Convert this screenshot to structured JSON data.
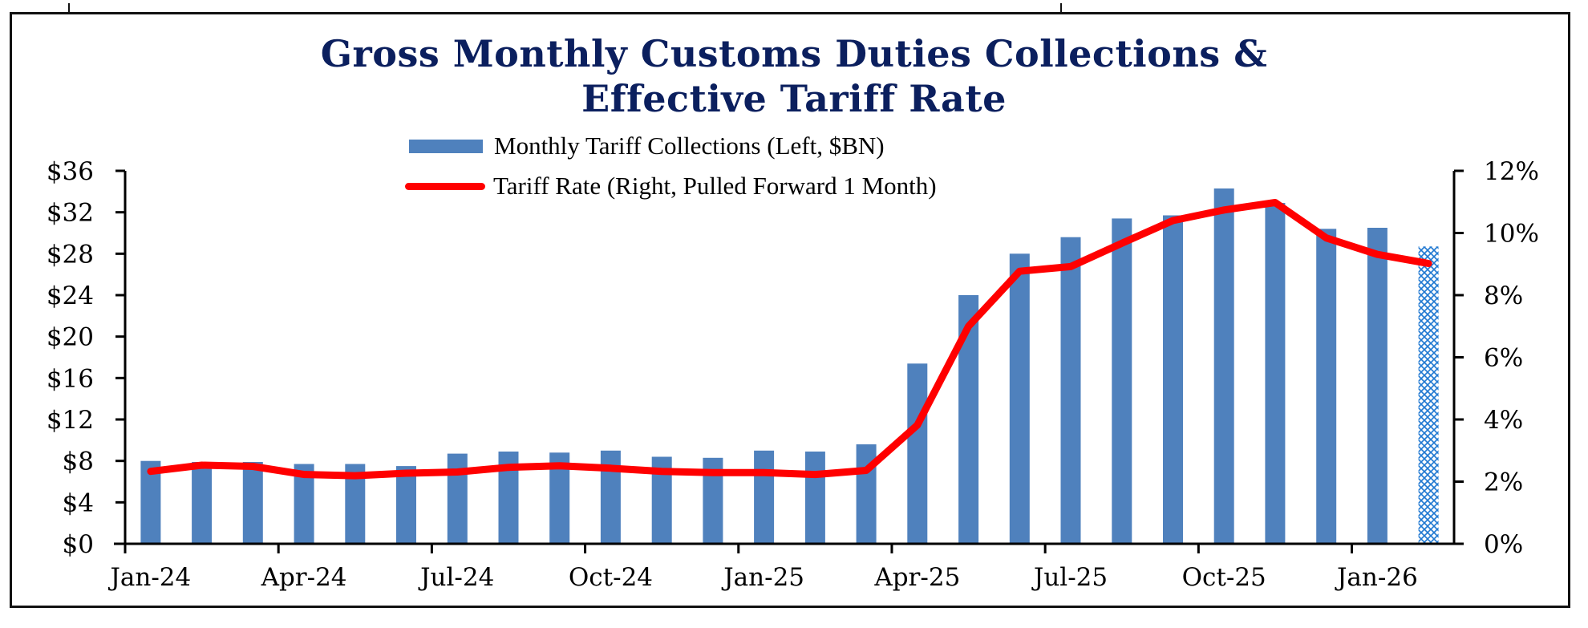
{
  "chart_data": {
    "type": "bar",
    "title_line1": "Gross Monthly Customs Duties Collections &",
    "title_line2": "Effective Tariff Rate",
    "xlabel": "",
    "ylabel": "",
    "categories": [
      "Jan-24",
      "Feb-24",
      "Mar-24",
      "Apr-24",
      "May-24",
      "Jun-24",
      "Jul-24",
      "Aug-24",
      "Sep-24",
      "Oct-24",
      "Nov-24",
      "Dec-24",
      "Jan-25",
      "Feb-25",
      "Mar-25",
      "Apr-25",
      "May-25",
      "Jun-25",
      "Jul-25",
      "Aug-25",
      "Sep-25",
      "Oct-25",
      "Nov-25",
      "Dec-25",
      "Jan-26",
      "Feb-26"
    ],
    "x_tick_labels": [
      "Jan-24",
      "Apr-24",
      "Jul-24",
      "Oct-24",
      "Jan-25",
      "Apr-25",
      "Jul-25",
      "Oct-25",
      "Jan-26"
    ],
    "series": [
      {
        "name": "Monthly Tariff Collections (Left, $BN)",
        "type": "bar",
        "axis": "left",
        "color": "#4f81bd",
        "values": [
          8.0,
          7.9,
          7.9,
          7.7,
          7.7,
          7.5,
          8.7,
          8.9,
          8.8,
          9.0,
          8.4,
          8.3,
          9.0,
          8.9,
          9.6,
          17.4,
          24.0,
          28.0,
          29.6,
          31.4,
          31.7,
          34.3,
          32.9,
          30.4,
          30.5,
          28.7
        ],
        "estimated_last_point": true,
        "estimated_pattern": "hatched"
      },
      {
        "name": "Tariff Rate (Right, Pulled Forward 1 Month)",
        "type": "line",
        "axis": "right",
        "color": "#ff0000",
        "values": [
          2.33,
          2.53,
          2.49,
          2.23,
          2.19,
          2.27,
          2.31,
          2.46,
          2.51,
          2.43,
          2.33,
          2.29,
          2.29,
          2.23,
          2.36,
          3.82,
          7.0,
          8.77,
          8.92,
          9.67,
          10.4,
          10.74,
          10.98,
          9.84,
          9.31,
          9.02
        ]
      }
    ],
    "y_left": {
      "ylim": [
        0,
        36
      ],
      "ticks": [
        0,
        4,
        8,
        12,
        16,
        20,
        24,
        28,
        32,
        36
      ],
      "tick_labels": [
        "$0",
        "$4",
        "$8",
        "$12",
        "$16",
        "$20",
        "$24",
        "$28",
        "$32",
        "$36"
      ]
    },
    "y_right": {
      "ylim": [
        0,
        12
      ],
      "ticks": [
        0,
        2,
        4,
        6,
        8,
        10,
        12
      ],
      "tick_labels": [
        "0%",
        "2%",
        "4%",
        "6%",
        "8%",
        "10%",
        "12%"
      ]
    },
    "legend": {
      "placement": "top-center",
      "entries": [
        "Monthly Tariff Collections (Left, $BN)",
        "Tariff Rate (Right, Pulled Forward 1 Month)"
      ]
    },
    "grid": false,
    "colors": {
      "title": "#0b1f5e",
      "bar": "#4f81bd",
      "line": "#ff0000",
      "hatch": "#1f78d1"
    }
  }
}
